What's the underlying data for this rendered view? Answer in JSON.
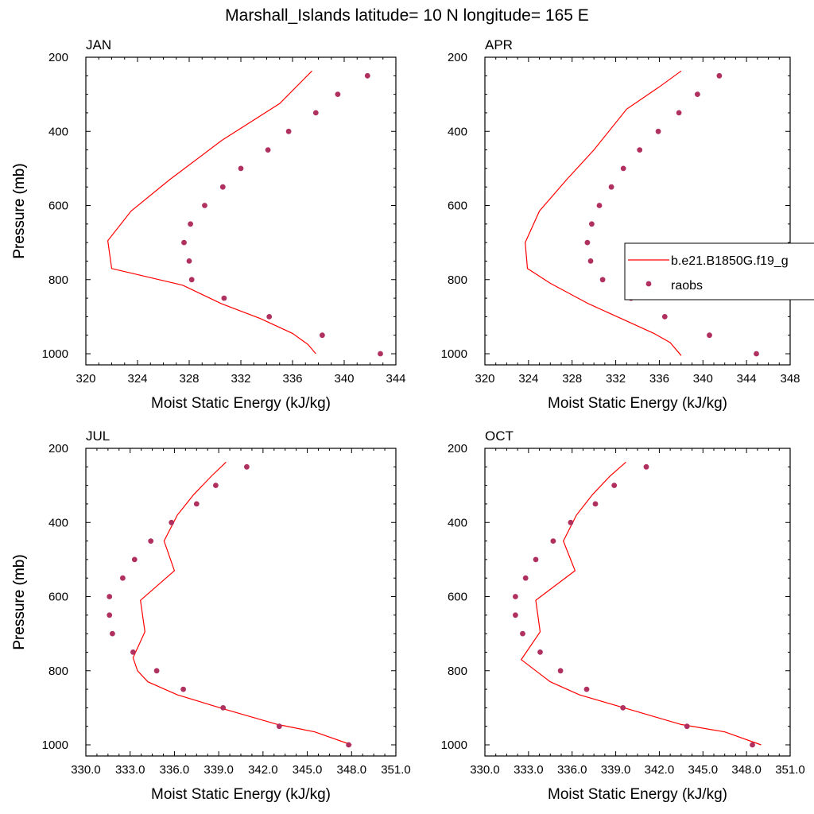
{
  "figure": {
    "title": "Marshall_Islands  latitude= 10 N longitude= 165 E"
  },
  "legend": {
    "model_label": "b.e21.B1850G.f19_g",
    "obs_label": "raobs",
    "panel": 1,
    "location": "right, partly outside the panel"
  },
  "colors": {
    "model": "#ff0000",
    "obs": "#b03060"
  },
  "chart_data": [
    {
      "type": "line",
      "title": "JAN",
      "xlabel": "Moist Static Energy (kJ/kg)",
      "ylabel": "Pressure (mb)",
      "xlim": [
        320,
        344
      ],
      "ylim": [
        1030,
        200
      ],
      "xticks": [
        320,
        324,
        328,
        332,
        336,
        340,
        344
      ],
      "xticklabels": [
        "320",
        "324",
        "328",
        "332",
        "336",
        "340",
        "344"
      ],
      "yticks": [
        200,
        400,
        600,
        800,
        1000
      ],
      "yticklabels": [
        "200",
        "400",
        "600",
        "800",
        "1000"
      ],
      "grid": false,
      "series": [
        {
          "name": "b.e21.B1850G.f19_g",
          "style": "line",
          "x": [
            337.5,
            335.0,
            330.5,
            326.5,
            323.5,
            321.7,
            322.0,
            327.5,
            330.5,
            333.5,
            336.0,
            337.2,
            337.8
          ],
          "y": [
            237,
            325,
            425,
            530,
            615,
            695,
            770,
            815,
            865,
            905,
            945,
            975,
            1000
          ]
        },
        {
          "name": "raobs",
          "style": "markers",
          "x": [
            341.8,
            339.5,
            337.8,
            335.7,
            334.1,
            332.0,
            330.6,
            329.2,
            328.1,
            327.6,
            328.0,
            328.2,
            330.7,
            334.2,
            338.3,
            342.8
          ],
          "y": [
            250,
            300,
            350,
            400,
            450,
            500,
            550,
            600,
            650,
            700,
            750,
            800,
            850,
            900,
            950,
            1000
          ]
        }
      ]
    },
    {
      "type": "line",
      "title": "APR",
      "xlabel": "Moist Static Energy (kJ/kg)",
      "ylabel": "Pressure (mb)",
      "xlim": [
        320,
        348
      ],
      "ylim": [
        1030,
        200
      ],
      "xticks": [
        320,
        324,
        328,
        332,
        336,
        340,
        344,
        348
      ],
      "xticklabels": [
        "320",
        "324",
        "328",
        "332",
        "336",
        "340",
        "344",
        "348"
      ],
      "yticks": [
        200,
        400,
        600,
        800,
        1000
      ],
      "yticklabels": [
        "200",
        "400",
        "600",
        "800",
        "1000"
      ],
      "grid": false,
      "series": [
        {
          "name": "b.e21.B1850G.f19_g",
          "style": "line",
          "x": [
            338.0,
            336.0,
            333.0,
            330.0,
            327.5,
            325.0,
            323.7,
            323.9,
            326.0,
            329.5,
            332.5,
            335.5,
            337.0,
            338.0
          ],
          "y": [
            237,
            280,
            340,
            450,
            530,
            615,
            700,
            770,
            810,
            865,
            905,
            945,
            970,
            1005
          ]
        },
        {
          "name": "raobs",
          "style": "markers",
          "x": [
            341.5,
            339.5,
            337.8,
            335.9,
            334.2,
            332.7,
            331.6,
            330.5,
            329.8,
            329.4,
            329.7,
            330.8,
            333.4,
            336.5,
            340.6,
            344.9
          ],
          "y": [
            250,
            300,
            350,
            400,
            450,
            500,
            550,
            600,
            650,
            700,
            750,
            800,
            850,
            900,
            950,
            1000
          ]
        }
      ]
    },
    {
      "type": "line",
      "title": "JUL",
      "xlabel": "Moist Static Energy (kJ/kg)",
      "ylabel": "Pressure (mb)",
      "xlim": [
        330,
        351
      ],
      "ylim": [
        1030,
        200
      ],
      "xticks": [
        330,
        333,
        336,
        339,
        342,
        345,
        348,
        351
      ],
      "xticklabels": [
        "330.0",
        "333.0",
        "336.0",
        "339.0",
        "342.0",
        "345.0",
        "348.0",
        "351.0"
      ],
      "yticks": [
        200,
        400,
        600,
        800,
        1000
      ],
      "yticklabels": [
        "200",
        "400",
        "600",
        "800",
        "1000"
      ],
      "grid": false,
      "series": [
        {
          "name": "b.e21.B1850G.f19_g",
          "style": "line",
          "x": [
            339.5,
            338.5,
            337.3,
            336.2,
            335.3,
            336.0,
            333.7,
            334.0,
            333.2,
            333.5,
            334.2,
            336.2,
            339.5,
            343.0,
            345.5,
            348.0
          ],
          "y": [
            237,
            275,
            325,
            380,
            450,
            530,
            610,
            695,
            765,
            800,
            830,
            865,
            905,
            945,
            965,
            1000
          ]
        },
        {
          "name": "raobs",
          "style": "markers",
          "x": [
            340.9,
            338.8,
            337.5,
            335.8,
            334.4,
            333.3,
            332.5,
            331.6,
            331.6,
            331.8,
            333.2,
            334.8,
            336.6,
            339.3,
            343.1,
            347.8
          ],
          "y": [
            250,
            300,
            350,
            400,
            450,
            500,
            550,
            600,
            650,
            700,
            750,
            800,
            850,
            900,
            950,
            1000
          ]
        }
      ]
    },
    {
      "type": "line",
      "title": "OCT",
      "xlabel": "Moist Static Energy (kJ/kg)",
      "ylabel": "Pressure (mb)",
      "xlim": [
        330,
        351
      ],
      "ylim": [
        1030,
        200
      ],
      "xticks": [
        330,
        333,
        336,
        339,
        342,
        345,
        348,
        351
      ],
      "xticklabels": [
        "330.0",
        "333.0",
        "336.0",
        "339.0",
        "342.0",
        "345.0",
        "348.0",
        "351.0"
      ],
      "yticks": [
        200,
        400,
        600,
        800,
        1000
      ],
      "yticklabels": [
        "200",
        "400",
        "600",
        "800",
        "1000"
      ],
      "grid": false,
      "series": [
        {
          "name": "b.e21.B1850G.f19_g",
          "style": "line",
          "x": [
            339.7,
            338.6,
            337.4,
            336.3,
            335.4,
            336.2,
            333.5,
            333.8,
            332.5,
            333.5,
            334.5,
            336.5,
            340.0,
            343.5,
            346.5,
            349.0
          ],
          "y": [
            237,
            275,
            325,
            380,
            450,
            530,
            610,
            695,
            770,
            800,
            830,
            865,
            905,
            945,
            965,
            1000
          ]
        },
        {
          "name": "raobs",
          "style": "markers",
          "x": [
            341.1,
            338.9,
            337.6,
            335.9,
            334.7,
            333.5,
            332.8,
            332.1,
            332.1,
            332.6,
            333.8,
            335.2,
            337.0,
            339.5,
            343.9,
            348.4
          ],
          "y": [
            250,
            300,
            350,
            400,
            450,
            500,
            550,
            600,
            650,
            700,
            750,
            800,
            850,
            900,
            950,
            1000
          ]
        }
      ]
    }
  ]
}
